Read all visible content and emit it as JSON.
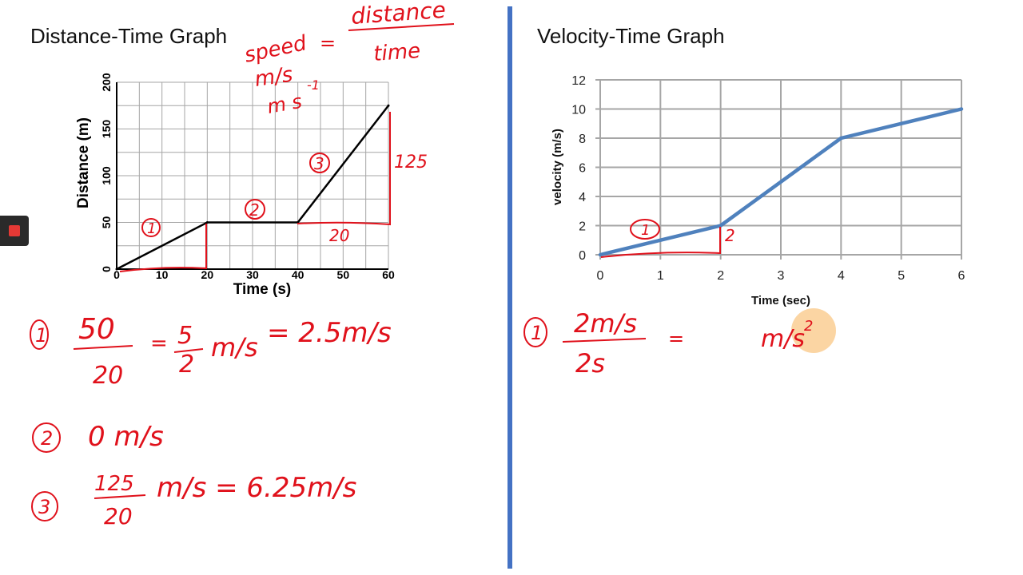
{
  "colors": {
    "divider": "#4472c4",
    "ink": "#e0111b",
    "dt_line": "#000000",
    "vt_line": "#4f81bd",
    "grid": "#a6a6a6",
    "highlight": "#f9c784",
    "record": "#e53935"
  },
  "record_button": {
    "icon": "stop-square-icon"
  },
  "chart_data": [
    {
      "type": "line",
      "title": "Distance-Time Graph",
      "xlabel": "Time (s)",
      "ylabel": "Distance (m)",
      "xlim": [
        0,
        60
      ],
      "ylim": [
        0,
        200
      ],
      "x_ticks": [
        0,
        10,
        20,
        30,
        40,
        50,
        60
      ],
      "y_ticks": [
        0,
        50,
        100,
        150,
        200
      ],
      "grid": true,
      "x": [
        0,
        20,
        40,
        60
      ],
      "y": [
        0,
        50,
        50,
        175
      ]
    },
    {
      "type": "line",
      "title": "Velocity-Time Graph",
      "xlabel": "Time (sec)",
      "ylabel": "velocity (m/s)",
      "xlim": [
        0,
        6
      ],
      "ylim": [
        0,
        12
      ],
      "x_ticks": [
        0,
        1,
        2,
        3,
        4,
        5,
        6
      ],
      "y_ticks": [
        0,
        2,
        4,
        6,
        8,
        10,
        12
      ],
      "grid": true,
      "x": [
        0,
        2,
        4,
        6
      ],
      "y": [
        0,
        2,
        8,
        10
      ]
    }
  ],
  "annotations": {
    "speed_word": "speed",
    "equals": "=",
    "distance_word": "distance",
    "time_word": "time",
    "unit_ms": "m/s",
    "unit_ms1": "m s",
    "unit_exp": "-1",
    "seg1_marker": "1",
    "seg2_marker": "2",
    "seg3_marker": "3",
    "rise_125": "125",
    "run_20": "20",
    "vt_marker": "1",
    "vt_rise": "2",
    "w1_num": "50",
    "w1_den": "20",
    "w1_eq": "=",
    "w1_num2": "5",
    "w1_den2": "2",
    "w1_unit": "m/s",
    "w1_result": "= 2.5m/s",
    "w2_result": "0 m/s",
    "w3_num": "125",
    "w3_den": "20",
    "w3_result": "m/s = 6.25m/s",
    "v1_num": "2m/s",
    "v1_den": "2s",
    "v1_eq": "=",
    "v1_unit": "m/s",
    "v1_exp": "2"
  }
}
